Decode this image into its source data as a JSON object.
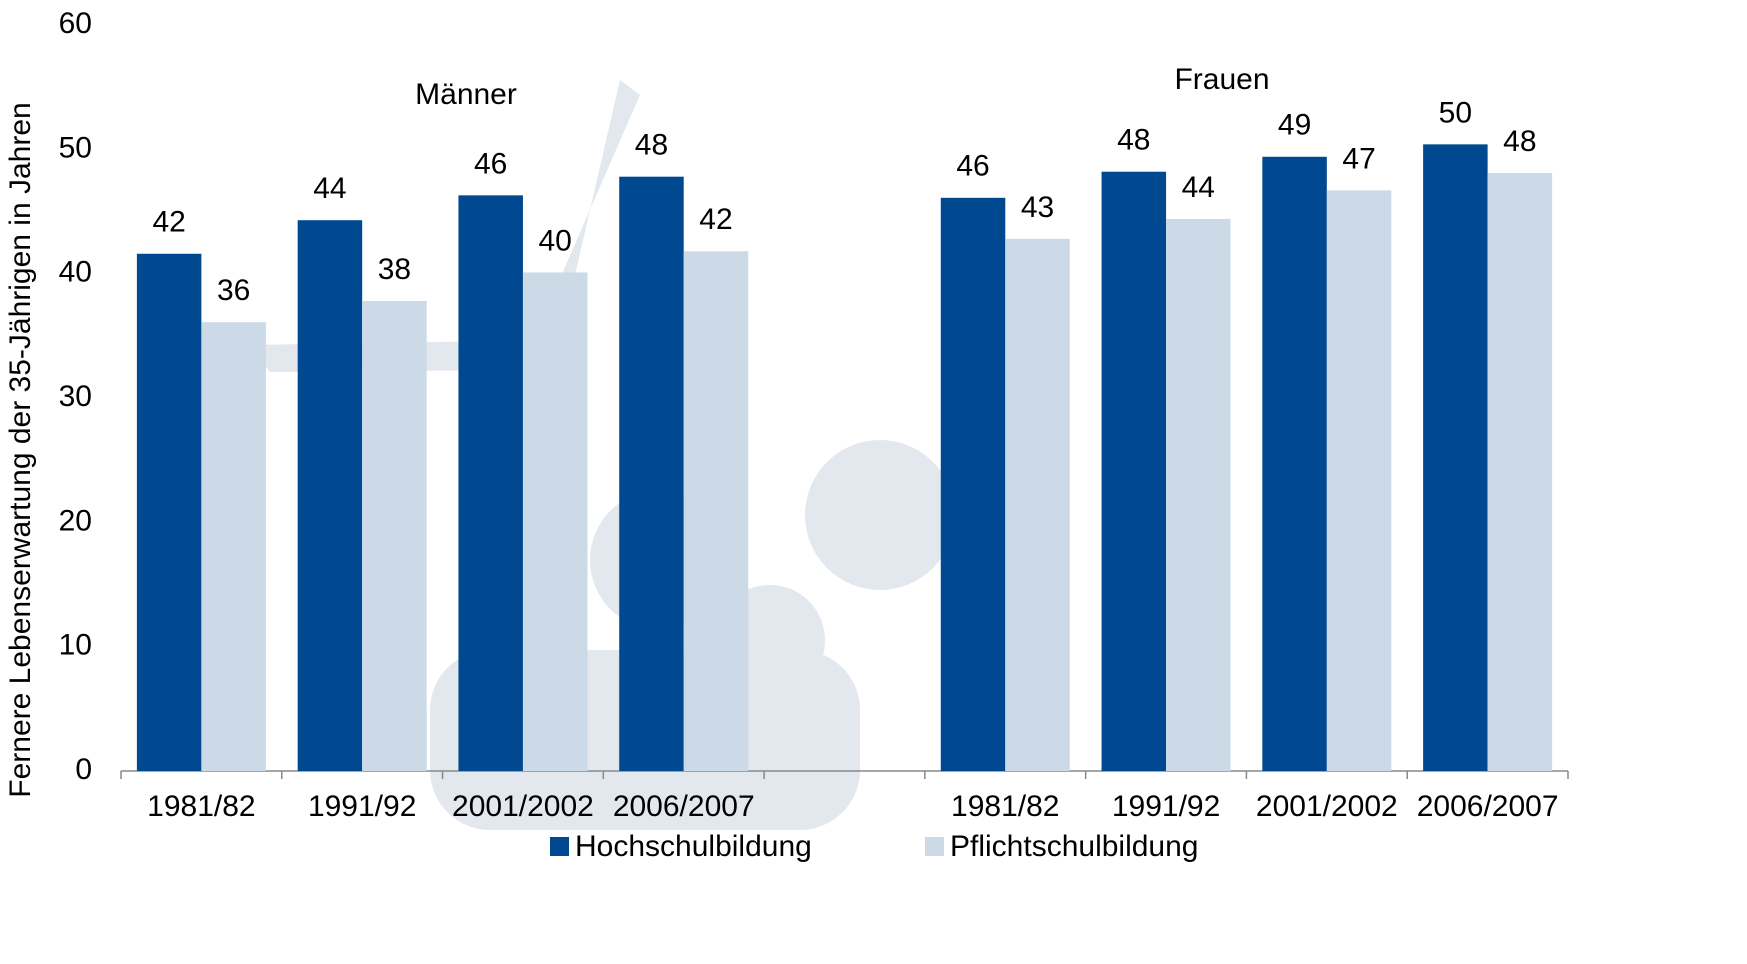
{
  "chart_data": {
    "type": "bar",
    "y_label": "Fernere Lebenserwartung der 35-Jährigen in Jahren",
    "annotations": [
      "Männer",
      "Frauen"
    ],
    "categories": [
      "1981/82",
      "1991/92",
      "2001/2002",
      "2006/2007",
      null,
      "1981/82",
      "1991/92",
      "2001/2002",
      "2006/2007"
    ],
    "series": [
      {
        "name": "Hochschulbildung",
        "color": "#004990",
        "values": [
          41.6,
          44.3,
          46.3,
          47.8,
          null,
          46.1,
          48.2,
          49.4,
          50.4
        ],
        "value_labels": [
          "42",
          "44",
          "46",
          "48",
          null,
          "46",
          "48",
          "49",
          "50"
        ]
      },
      {
        "name": "Pflichtschulbildung",
        "color": "#ccdae8",
        "values": [
          36.1,
          37.8,
          40.1,
          41.8,
          null,
          42.8,
          44.4,
          46.7,
          48.1
        ],
        "value_labels": [
          "36",
          "38",
          "40",
          "42",
          null,
          "43",
          "44",
          "47",
          "48"
        ]
      }
    ],
    "ylim": [
      0,
      60
    ],
    "yticks": [
      0,
      10,
      20,
      30,
      40,
      50,
      60
    ],
    "grid": false
  }
}
